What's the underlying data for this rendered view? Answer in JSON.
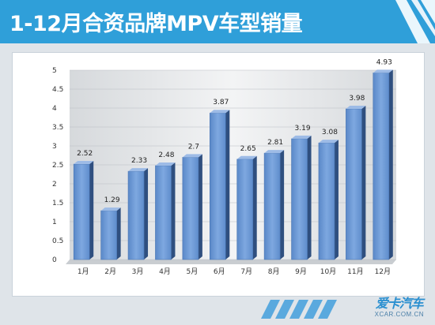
{
  "header": {
    "title": "1-12月合资品牌MPV车型销量"
  },
  "logo": {
    "main": "爱卡汽车",
    "sub": "XCAR.COM.CN"
  },
  "colors": {
    "header": "#2f9fd9",
    "bar_front": "#6b9ad6",
    "bar_side": "#2f4f7f",
    "bar_top": "#9dbbe6"
  },
  "chart_data": {
    "type": "bar",
    "title": "",
    "xlabel": "",
    "ylabel": "",
    "categories": [
      "1月",
      "2月",
      "3月",
      "4月",
      "5月",
      "6月",
      "7月",
      "8月",
      "9月",
      "10月",
      "11月",
      "12月"
    ],
    "values": [
      2.52,
      1.29,
      2.33,
      2.48,
      2.7,
      3.87,
      2.65,
      2.81,
      3.19,
      3.08,
      3.98,
      4.93
    ],
    "data_labels": [
      "2.52",
      "1.29",
      "2.33",
      "2.48",
      "2.7",
      "3.87",
      "2.65",
      "2.81",
      "3.19",
      "3.08",
      "3.98",
      "4.93"
    ],
    "ylim": [
      0,
      5
    ],
    "yticks": [
      "0",
      "0.5",
      "1",
      "1.5",
      "2",
      "2.5",
      "3",
      "3.5",
      "4",
      "4.5",
      "5"
    ],
    "yticks_values": [
      0,
      0.5,
      1,
      1.5,
      2,
      2.5,
      3,
      3.5,
      4,
      4.5,
      5
    ],
    "grid": true,
    "legend": "none",
    "style": "3d-bar"
  }
}
